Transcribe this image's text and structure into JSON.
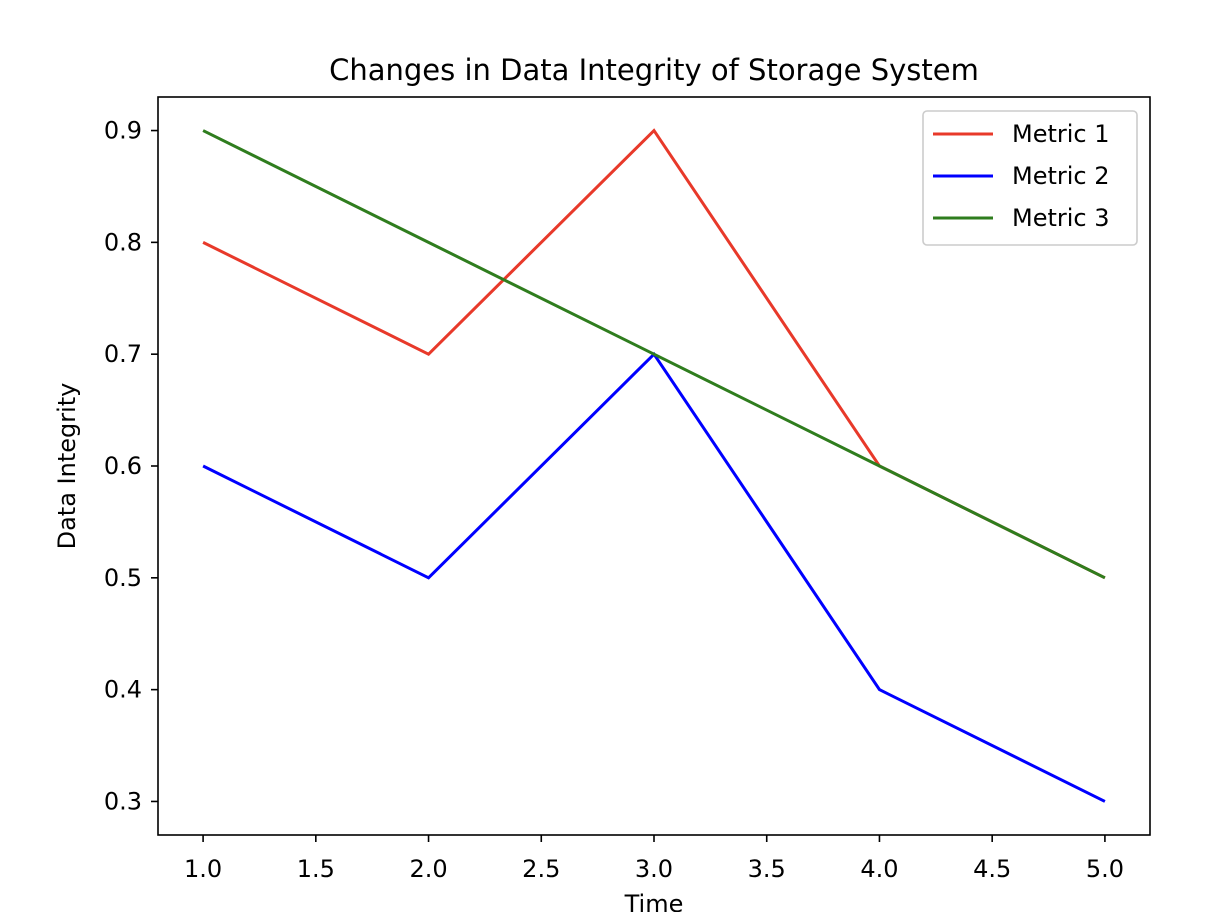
{
  "chart_data": {
    "type": "line",
    "title": "Changes in Data Integrity of Storage System",
    "xlabel": "Time",
    "ylabel": "Data Integrity",
    "x": [
      1,
      2,
      3,
      4,
      5
    ],
    "xlim": [
      0.8,
      5.2
    ],
    "ylim": [
      0.27,
      0.93
    ],
    "xticks": [
      "1.0",
      "1.5",
      "2.0",
      "2.5",
      "3.0",
      "3.5",
      "4.0",
      "4.5",
      "5.0"
    ],
    "yticks": [
      "0.3",
      "0.4",
      "0.5",
      "0.6",
      "0.7",
      "0.8",
      "0.9"
    ],
    "grid": false,
    "legend_position": "top-right",
    "series": [
      {
        "name": "Metric 1",
        "color": "#e8392a",
        "values": [
          0.8,
          0.7,
          0.9,
          0.6,
          0.5
        ]
      },
      {
        "name": "Metric 2",
        "color": "#0000ff",
        "values": [
          0.6,
          0.5,
          0.7,
          0.4,
          0.3
        ]
      },
      {
        "name": "Metric 3",
        "color": "#2f7d1e",
        "values": [
          0.9,
          0.8,
          0.7,
          0.6,
          0.5
        ]
      }
    ]
  }
}
